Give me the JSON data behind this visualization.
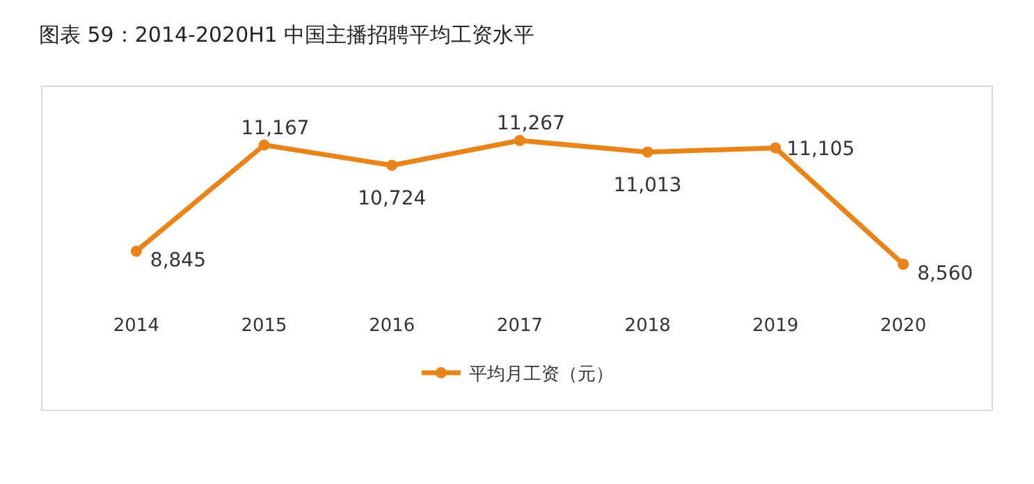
{
  "chart_data": {
    "type": "line",
    "title": "图表 59：2014-2020H1 中国主播招聘平均工资水平",
    "categories": [
      "2014",
      "2015",
      "2016",
      "2017",
      "2018",
      "2019",
      "2020"
    ],
    "series": [
      {
        "name": "平均月工资（元）",
        "color": "#e8851a",
        "values": [
          8845,
          11167,
          10724,
          11267,
          11013,
          11105,
          8560
        ],
        "value_labels": [
          "8,845",
          "11,167",
          "10,724",
          "11,267",
          "11,013",
          "11,105",
          "8,560"
        ]
      }
    ],
    "tick_labels": "x",
    "legend": "bottom",
    "marker": "circle",
    "line_style": "solid"
  }
}
